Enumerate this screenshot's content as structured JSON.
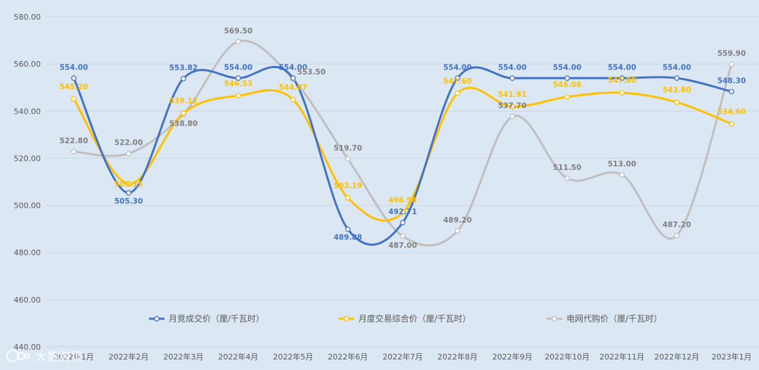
{
  "chart_data": {
    "type": "line",
    "categories": [
      "2022年1月",
      "2022年2月",
      "2022年3月",
      "2022年4月",
      "2022年5月",
      "2022年6月",
      "2022年7月",
      "2022年8月",
      "2022年9月",
      "2022年10月",
      "2022年11月",
      "2022年12月",
      "2023年1月"
    ],
    "yticks": [
      "440.00",
      "460.00",
      "480.00",
      "500.00",
      "520.00",
      "540.00",
      "560.00",
      "580.00"
    ],
    "ylim": [
      440,
      580
    ],
    "grid": true,
    "legend_position": "bottom",
    "series": [
      {
        "name": "月竞成交价（厘/千瓦时）",
        "color": "#4472c4",
        "values": [
          554.0,
          505.3,
          553.82,
          554.0,
          554.0,
          489.88,
          492.71,
          554.0,
          554.0,
          554.0,
          554.0,
          554.0,
          548.3
        ],
        "labels": [
          "554.00",
          "505.30",
          "553.82",
          "554.00",
          "554.00",
          "489.88",
          "492.71",
          "554.00",
          "554.00",
          "554.00",
          "554.00",
          "554.00",
          "548.30"
        ]
      },
      {
        "name": "月度交易综合价（厘/千瓦时）",
        "color": "#ffc000",
        "values": [
          545.2,
          509.15,
          539.12,
          546.53,
          544.87,
          503.19,
          496.98,
          547.6,
          541.91,
          546.06,
          547.8,
          543.8,
          534.6
        ],
        "labels": [
          "545.20",
          "509.15",
          "539.12",
          "546.53",
          "544.87",
          "503.19",
          "496.98",
          "547.60",
          "541.91",
          "546.06",
          "547.80",
          "543.80",
          "534.60"
        ]
      },
      {
        "name": "电网代购价（厘/千瓦时）",
        "color": "#bfbfbf",
        "values": [
          522.8,
          522.0,
          538.8,
          569.5,
          553.5,
          519.7,
          487.0,
          489.2,
          537.7,
          511.5,
          513.0,
          487.2,
          559.9
        ],
        "labels": [
          "522.80",
          "522.00",
          "538.80",
          "569.50",
          "553.50",
          "519.70",
          "487.00",
          "489.20",
          "537.70",
          "511.50",
          "513.00",
          "487.20",
          "559.90"
        ]
      }
    ]
  },
  "watermark": "大数跨境"
}
